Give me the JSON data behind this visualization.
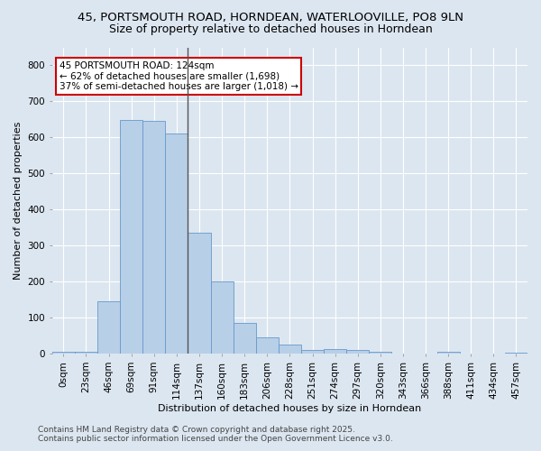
{
  "title_line1": "45, PORTSMOUTH ROAD, HORNDEAN, WATERLOOVILLE, PO8 9LN",
  "title_line2": "Size of property relative to detached houses in Horndean",
  "xlabel": "Distribution of detached houses by size in Horndean",
  "ylabel": "Number of detached properties",
  "bin_labels": [
    "0sqm",
    "23sqm",
    "46sqm",
    "69sqm",
    "91sqm",
    "114sqm",
    "137sqm",
    "160sqm",
    "183sqm",
    "206sqm",
    "228sqm",
    "251sqm",
    "274sqm",
    "297sqm",
    "320sqm",
    "343sqm",
    "366sqm",
    "388sqm",
    "411sqm",
    "434sqm",
    "457sqm"
  ],
  "bar_values": [
    5,
    5,
    145,
    648,
    645,
    610,
    335,
    200,
    85,
    45,
    25,
    10,
    12,
    10,
    5,
    0,
    0,
    5,
    0,
    0,
    3
  ],
  "bar_color": "#b8cfe8",
  "bar_edge_color": "#6699cc",
  "background_color": "#dce6f0",
  "grid_color": "#ffffff",
  "vline_bin": 5.48,
  "vline_color": "#555555",
  "annotation_text": "45 PORTSMOUTH ROAD: 124sqm\n← 62% of detached houses are smaller (1,698)\n37% of semi-detached houses are larger (1,018) →",
  "annotation_box_facecolor": "#ffffff",
  "annotation_box_edgecolor": "#cc0000",
  "annotation_text_color": "#000000",
  "ylim": [
    0,
    850
  ],
  "yticks": [
    0,
    100,
    200,
    300,
    400,
    500,
    600,
    700,
    800
  ],
  "footer_line1": "Contains HM Land Registry data © Crown copyright and database right 2025.",
  "footer_line2": "Contains public sector information licensed under the Open Government Licence v3.0.",
  "title_fontsize": 9.5,
  "subtitle_fontsize": 9,
  "axis_label_fontsize": 8,
  "tick_fontsize": 7.5,
  "annotation_fontsize": 7.5,
  "footer_fontsize": 6.5
}
